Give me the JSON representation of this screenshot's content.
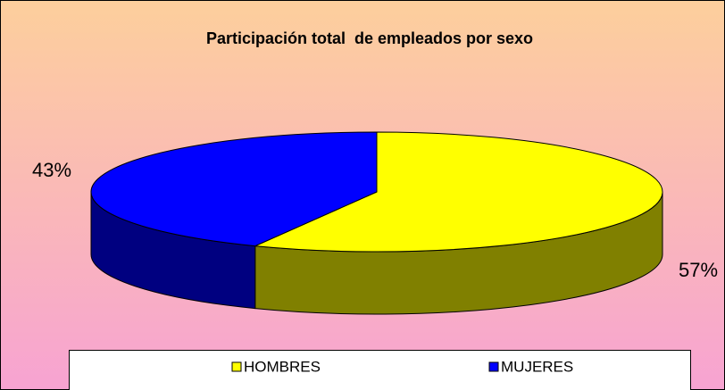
{
  "chart_data": {
    "type": "pie",
    "title": "Participación total  de empleados por sexo",
    "categories": [
      "HOMBRES",
      "MUJERES"
    ],
    "values": [
      57,
      43
    ],
    "value_labels": [
      "57%",
      "43%"
    ],
    "colors": [
      "#ffff00",
      "#0000ff"
    ],
    "side_colors": [
      "#808000",
      "#000080"
    ],
    "legend": "bottom"
  }
}
